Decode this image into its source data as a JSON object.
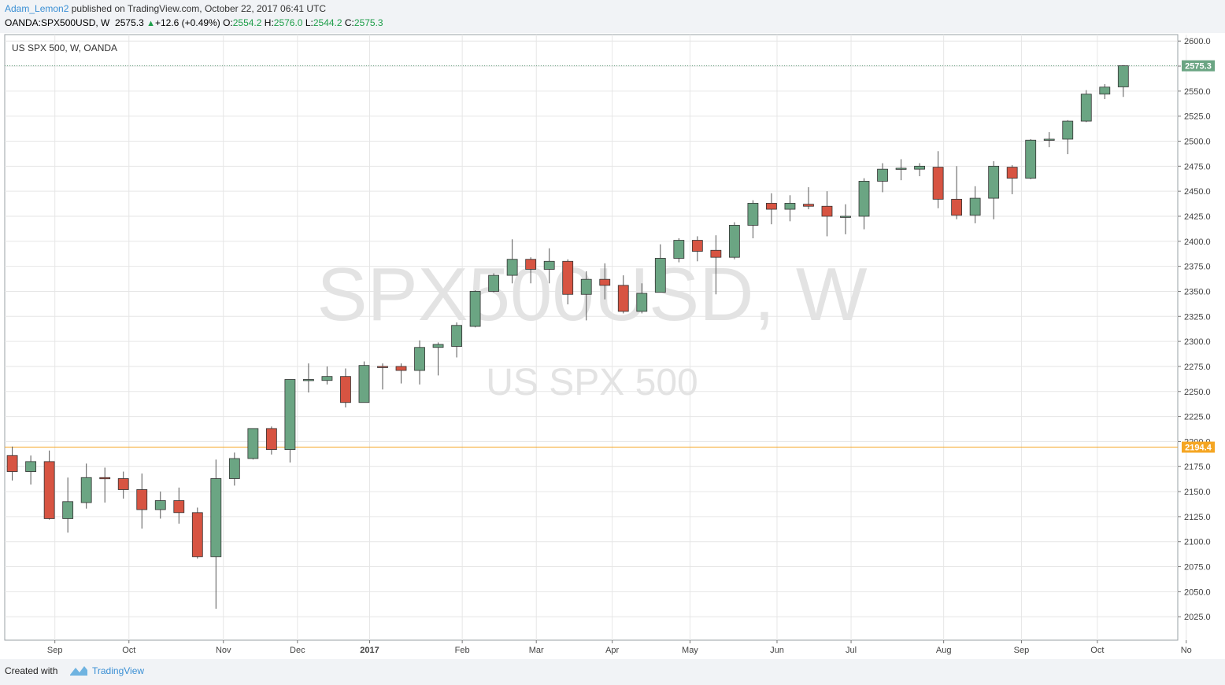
{
  "header": {
    "author": "Adam_Lemon2",
    "published_text": "published on TradingView.com, October 22, 2017 06:41 UTC",
    "symbol": "OANDA:SPX500USD, W",
    "last": "2575.3",
    "change": "+12.6 (+0.49%)",
    "o_label": "O:",
    "o": "2554.2",
    "h_label": "H:",
    "h": "2576.0",
    "l_label": "L:",
    "l": "2544.2",
    "c_label": "C:",
    "c": "2575.3"
  },
  "footer": {
    "created_with": "Created with",
    "brand": "TradingView"
  },
  "colors": {
    "up": "#6ba583",
    "down": "#d75442",
    "grid": "#e6e6e6",
    "hline": "#f5a623",
    "last_price_tag": "#6ba583"
  },
  "chart_data": {
    "type": "candlestick",
    "title": "US SPX 500, W, OANDA",
    "watermark": "SPX500USD, W",
    "watermark_sub": "US SPX 500",
    "interval": "W",
    "ylim": [
      2005,
      2610
    ],
    "yticks": [
      2025.0,
      2050.0,
      2075.0,
      2100.0,
      2125.0,
      2150.0,
      2175.0,
      2200.0,
      2225.0,
      2250.0,
      2275.0,
      2300.0,
      2325.0,
      2350.0,
      2375.0,
      2400.0,
      2425.0,
      2450.0,
      2475.0,
      2500.0,
      2525.0,
      2550.0,
      2575.0,
      2600.0
    ],
    "xlabels": [
      {
        "label": "Sep",
        "idx": 2.3,
        "bold": false
      },
      {
        "label": "Oct",
        "idx": 6.3,
        "bold": false
      },
      {
        "label": "Nov",
        "idx": 11.4,
        "bold": false
      },
      {
        "label": "Dec",
        "idx": 15.4,
        "bold": false
      },
      {
        "label": "2017",
        "idx": 19.3,
        "bold": true
      },
      {
        "label": "Feb",
        "idx": 24.3,
        "bold": false
      },
      {
        "label": "Mar",
        "idx": 28.3,
        "bold": false
      },
      {
        "label": "Apr",
        "idx": 32.4,
        "bold": false
      },
      {
        "label": "May",
        "idx": 36.6,
        "bold": false
      },
      {
        "label": "Jun",
        "idx": 41.3,
        "bold": false
      },
      {
        "label": "Jul",
        "idx": 45.3,
        "bold": false
      },
      {
        "label": "Aug",
        "idx": 50.3,
        "bold": false
      },
      {
        "label": "Sep",
        "idx": 54.5,
        "bold": false
      },
      {
        "label": "Oct",
        "idx": 58.6,
        "bold": false
      },
      {
        "label": "No",
        "idx": 63.4,
        "bold": false
      }
    ],
    "hline": 2194.4,
    "hline_label": "2194.4",
    "last_price": 2575.3,
    "last_price_label": "2575.3",
    "candles": [
      {
        "o": 2186,
        "h": 2195,
        "l": 2161,
        "c": 2170
      },
      {
        "o": 2170,
        "h": 2186,
        "l": 2157,
        "c": 2180
      },
      {
        "o": 2180,
        "h": 2191,
        "l": 2122,
        "c": 2123
      },
      {
        "o": 2123,
        "h": 2164,
        "l": 2109,
        "c": 2140
      },
      {
        "o": 2139,
        "h": 2178,
        "l": 2133,
        "c": 2164
      },
      {
        "o": 2164,
        "h": 2174,
        "l": 2139,
        "c": 2163
      },
      {
        "o": 2163,
        "h": 2170,
        "l": 2143,
        "c": 2152
      },
      {
        "o": 2152,
        "h": 2168,
        "l": 2113,
        "c": 2132
      },
      {
        "o": 2132,
        "h": 2150,
        "l": 2123,
        "c": 2141
      },
      {
        "o": 2141,
        "h": 2154,
        "l": 2118,
        "c": 2129
      },
      {
        "o": 2129,
        "h": 2134,
        "l": 2083,
        "c": 2085
      },
      {
        "o": 2085,
        "h": 2182,
        "l": 2033,
        "c": 2163
      },
      {
        "o": 2163,
        "h": 2189,
        "l": 2156,
        "c": 2183
      },
      {
        "o": 2183,
        "h": 2213,
        "l": 2182,
        "c": 2213
      },
      {
        "o": 2213,
        "h": 2215,
        "l": 2187,
        "c": 2192
      },
      {
        "o": 2192,
        "h": 2262,
        "l": 2179,
        "c": 2262
      },
      {
        "o": 2261,
        "h": 2278,
        "l": 2249,
        "c": 2262
      },
      {
        "o": 2261,
        "h": 2275,
        "l": 2257,
        "c": 2265
      },
      {
        "o": 2265,
        "h": 2273,
        "l": 2234,
        "c": 2239
      },
      {
        "o": 2239,
        "h": 2280,
        "l": 2239,
        "c": 2276
      },
      {
        "o": 2275,
        "h": 2278,
        "l": 2252,
        "c": 2274
      },
      {
        "o": 2275,
        "h": 2278,
        "l": 2258,
        "c": 2271
      },
      {
        "o": 2271,
        "h": 2301,
        "l": 2257,
        "c": 2294
      },
      {
        "o": 2294,
        "h": 2299,
        "l": 2266,
        "c": 2297
      },
      {
        "o": 2295,
        "h": 2319,
        "l": 2284,
        "c": 2316
      },
      {
        "o": 2315,
        "h": 2351,
        "l": 2314,
        "c": 2350
      },
      {
        "o": 2350,
        "h": 2368,
        "l": 2349,
        "c": 2366
      },
      {
        "o": 2366,
        "h": 2402,
        "l": 2358,
        "c": 2382
      },
      {
        "o": 2382,
        "h": 2384,
        "l": 2358,
        "c": 2372
      },
      {
        "o": 2372,
        "h": 2393,
        "l": 2358,
        "c": 2380
      },
      {
        "o": 2380,
        "h": 2382,
        "l": 2337,
        "c": 2347
      },
      {
        "o": 2347,
        "h": 2370,
        "l": 2321,
        "c": 2362
      },
      {
        "o": 2362,
        "h": 2378,
        "l": 2342,
        "c": 2356
      },
      {
        "o": 2356,
        "h": 2366,
        "l": 2328,
        "c": 2330
      },
      {
        "o": 2330,
        "h": 2358,
        "l": 2328,
        "c": 2348
      },
      {
        "o": 2349,
        "h": 2397,
        "l": 2349,
        "c": 2383
      },
      {
        "o": 2383,
        "h": 2403,
        "l": 2379,
        "c": 2401
      },
      {
        "o": 2401,
        "h": 2405,
        "l": 2380,
        "c": 2390
      },
      {
        "o": 2391,
        "h": 2406,
        "l": 2347,
        "c": 2384
      },
      {
        "o": 2384,
        "h": 2419,
        "l": 2382,
        "c": 2416
      },
      {
        "o": 2416,
        "h": 2441,
        "l": 2403,
        "c": 2438
      },
      {
        "o": 2438,
        "h": 2448,
        "l": 2417,
        "c": 2432
      },
      {
        "o": 2432,
        "h": 2446,
        "l": 2420,
        "c": 2438
      },
      {
        "o": 2437,
        "h": 2454,
        "l": 2432,
        "c": 2435
      },
      {
        "o": 2435,
        "h": 2450,
        "l": 2405,
        "c": 2425
      },
      {
        "o": 2424,
        "h": 2437,
        "l": 2407,
        "c": 2425
      },
      {
        "o": 2425,
        "h": 2463,
        "l": 2412,
        "c": 2460
      },
      {
        "o": 2460,
        "h": 2478,
        "l": 2449,
        "c": 2472
      },
      {
        "o": 2472,
        "h": 2482,
        "l": 2461,
        "c": 2473
      },
      {
        "o": 2472,
        "h": 2478,
        "l": 2465,
        "c": 2475
      },
      {
        "o": 2474,
        "h": 2490,
        "l": 2433,
        "c": 2442
      },
      {
        "o": 2442,
        "h": 2475,
        "l": 2422,
        "c": 2426
      },
      {
        "o": 2426,
        "h": 2455,
        "l": 2418,
        "c": 2443
      },
      {
        "o": 2443,
        "h": 2480,
        "l": 2422,
        "c": 2475
      },
      {
        "o": 2474,
        "h": 2476,
        "l": 2447,
        "c": 2463
      },
      {
        "o": 2463,
        "h": 2502,
        "l": 2462,
        "c": 2501
      },
      {
        "o": 2501,
        "h": 2509,
        "l": 2494,
        "c": 2502
      },
      {
        "o": 2502,
        "h": 2521,
        "l": 2487,
        "c": 2520
      },
      {
        "o": 2520,
        "h": 2551,
        "l": 2519,
        "c": 2547
      },
      {
        "o": 2547,
        "h": 2557,
        "l": 2542,
        "c": 2554
      },
      {
        "o": 2554.2,
        "h": 2576.0,
        "l": 2544.2,
        "c": 2575.3
      }
    ]
  }
}
